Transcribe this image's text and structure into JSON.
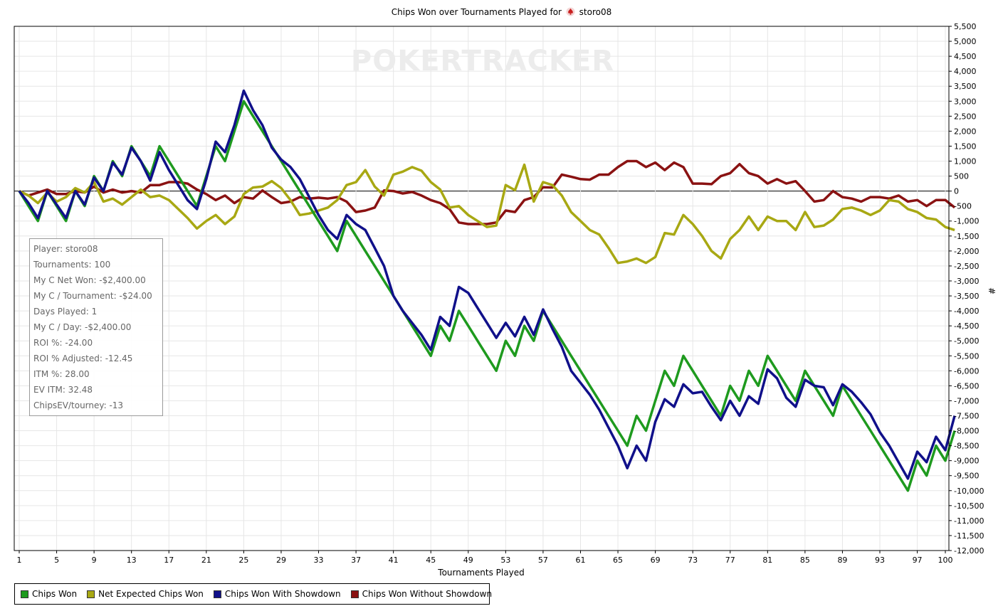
{
  "title": {
    "prefix": "Chips Won over Tournaments Played for",
    "player": "storo08",
    "suit_icon": "spade-poker-icon"
  },
  "watermark": "POKERTRACKER",
  "stats_box": [
    "Player: storo08",
    "Tournaments: 100",
    "My C Net Won: -$2,400.00",
    "My C / Tournament: -$24.00",
    "Days Played: 1",
    "My C / Day: -$2,400.00",
    "ROI %: -24.00",
    "ROI % Adjusted: -12.45",
    "ITM %: 28.00",
    "EV ITM: 32.48",
    "ChipsEV/tourney: -13"
  ],
  "colors": {
    "chips_won": "#1e9a1e",
    "net_expected": "#a8a813",
    "with_showdown": "#10108a",
    "without_showdown": "#8a1212",
    "grid": "#e6e6e6",
    "zero_line": "#000000"
  },
  "chart_data": {
    "type": "line",
    "title": "Chips Won over Tournaments Played for storo08",
    "xlabel": "Tournaments Played",
    "ylabel": "#",
    "xlim": [
      0,
      100
    ],
    "ylim": [
      -12000,
      5500
    ],
    "x_ticks": [
      "1",
      "5",
      "9",
      "13",
      "17",
      "21",
      "25",
      "29",
      "33",
      "37",
      "41",
      "45",
      "49",
      "53",
      "57",
      "61",
      "65",
      "69",
      "73",
      "77",
      "81",
      "85",
      "89",
      "93",
      "97",
      "100"
    ],
    "y_ticks": [
      "5,500",
      "5,000",
      "4,500",
      "4,000",
      "3,500",
      "3,000",
      "2,500",
      "2,000",
      "1,500",
      "1,000",
      "500",
      "0",
      "-500",
      "-1,000",
      "-1,500",
      "-2,000",
      "-2,500",
      "-3,000",
      "-3,500",
      "-4,000",
      "-4,500",
      "-5,000",
      "-5,500",
      "-6,000",
      "-6,500",
      "-7,000",
      "-7,500",
      "-8,000",
      "-8,500",
      "-9,000",
      "-9,500",
      "-10,000",
      "-10,500",
      "-11,000",
      "-11,500",
      "-12,000"
    ],
    "grid": true,
    "legend_position": "bottom",
    "series": [
      {
        "name": "Chips Won",
        "color": "#1e9a1e",
        "values": [
          0,
          -500,
          -1000,
          0,
          -500,
          -1000,
          0,
          -500,
          500,
          0,
          1000,
          500,
          1500,
          1000,
          500,
          1500,
          1000,
          500,
          0,
          -500,
          500,
          1500,
          1000,
          2000,
          3000,
          2500,
          2000,
          1500,
          1000,
          500,
          0,
          -500,
          -1000,
          -1500,
          -2000,
          -1000,
          -1500,
          -2000,
          -2500,
          -3000,
          -3500,
          -4000,
          -4500,
          -5000,
          -5500,
          -4500,
          -5000,
          -4000,
          -4500,
          -5000,
          -5500,
          -6000,
          -5000,
          -5500,
          -4500,
          -5000,
          -4000,
          -4500,
          -5000,
          -5500,
          -6000,
          -6500,
          -7000,
          -7500,
          -8000,
          -8500,
          -7500,
          -8000,
          -7000,
          -6000,
          -6500,
          -5500,
          -6000,
          -6500,
          -7000,
          -7500,
          -6500,
          -7000,
          -6000,
          -6500,
          -5500,
          -6000,
          -6500,
          -7000,
          -6000,
          -6500,
          -7000,
          -7500,
          -6500,
          -7000,
          -7500,
          -8000,
          -8500,
          -9000,
          -9500,
          -10000,
          -9000,
          -9500,
          -8500,
          -9000,
          -8000
        ]
      },
      {
        "name": "Net Expected Chips Won",
        "color": "#a8a813",
        "values": [
          0,
          -150,
          -400,
          -50,
          -350,
          -200,
          100,
          -50,
          300,
          -350,
          -250,
          -450,
          -200,
          50,
          -200,
          -150,
          -300,
          -600,
          -900,
          -1250,
          -1000,
          -800,
          -1100,
          -850,
          -100,
          120,
          150,
          330,
          100,
          -300,
          -800,
          -750,
          -650,
          -550,
          -300,
          200,
          300,
          700,
          150,
          -150,
          550,
          650,
          800,
          680,
          300,
          50,
          -550,
          -500,
          -800,
          -1000,
          -1200,
          -1150,
          200,
          30,
          880,
          -350,
          300,
          200,
          -150,
          -700,
          -1000,
          -1300,
          -1450,
          -1900,
          -2400,
          -2350,
          -2250,
          -2400,
          -2200,
          -1400,
          -1450,
          -800,
          -1100,
          -1500,
          -2000,
          -2250,
          -1600,
          -1300,
          -850,
          -1300,
          -850,
          -1000,
          -1000,
          -1300,
          -700,
          -1200,
          -1150,
          -950,
          -600,
          -550,
          -650,
          -800,
          -650,
          -300,
          -350,
          -600,
          -700,
          -900,
          -950,
          -1200,
          -1300
        ]
      },
      {
        "name": "Chips Won With Showdown",
        "color": "#10108a",
        "values": [
          0,
          -400,
          -900,
          0,
          -450,
          -900,
          0,
          -450,
          450,
          0,
          950,
          550,
          1450,
          1000,
          350,
          1300,
          700,
          200,
          -300,
          -600,
          400,
          1650,
          1300,
          2200,
          3350,
          2700,
          2200,
          1450,
          1050,
          800,
          400,
          -200,
          -800,
          -1300,
          -1600,
          -800,
          -1100,
          -1300,
          -1900,
          -2500,
          -3500,
          -4000,
          -4400,
          -4800,
          -5300,
          -4200,
          -4500,
          -3200,
          -3400,
          -3900,
          -4400,
          -4900,
          -4400,
          -4850,
          -4200,
          -4800,
          -3950,
          -4600,
          -5200,
          -6000,
          -6400,
          -6800,
          -7300,
          -7900,
          -8500,
          -9250,
          -8500,
          -9000,
          -7700,
          -6950,
          -7200,
          -6450,
          -6750,
          -6700,
          -7200,
          -7650,
          -7000,
          -7500,
          -6850,
          -7100,
          -5950,
          -6250,
          -6900,
          -7200,
          -6300,
          -6500,
          -6550,
          -7150,
          -6450,
          -6700,
          -7050,
          -7450,
          -8050,
          -8500,
          -9050,
          -9600,
          -8700,
          -9050,
          -8200,
          -8650,
          -7500
        ]
      },
      {
        "name": "Chips Won Without Showdown",
        "color": "#8a1212",
        "values": [
          0,
          -150,
          -50,
          50,
          -100,
          -100,
          0,
          -50,
          150,
          -50,
          50,
          -50,
          0,
          -50,
          200,
          200,
          300,
          300,
          250,
          50,
          -100,
          -300,
          -150,
          -400,
          -200,
          -250,
          20,
          -200,
          -400,
          -350,
          -200,
          -250,
          -220,
          -250,
          -200,
          -350,
          -700,
          -650,
          -550,
          20,
          0,
          -80,
          -30,
          -150,
          -300,
          -400,
          -600,
          -1050,
          -1100,
          -1100,
          -1100,
          -1050,
          -650,
          -700,
          -300,
          -200,
          130,
          120,
          550,
          480,
          400,
          380,
          550,
          550,
          800,
          1000,
          1000,
          800,
          950,
          700,
          950,
          800,
          250,
          250,
          230,
          500,
          600,
          900,
          600,
          500,
          250,
          400,
          250,
          330,
          0,
          -350,
          -300,
          0,
          -200,
          -250,
          -350,
          -200,
          -200,
          -250,
          -150,
          -350,
          -300,
          -500,
          -300,
          -300,
          -550
        ]
      }
    ]
  },
  "legend": [
    {
      "label": "Chips Won",
      "color": "#1e9a1e"
    },
    {
      "label": "Net Expected Chips Won",
      "color": "#a8a813"
    },
    {
      "label": "Chips Won With Showdown",
      "color": "#10108a"
    },
    {
      "label": "Chips Won Without Showdown",
      "color": "#8a1212"
    }
  ]
}
